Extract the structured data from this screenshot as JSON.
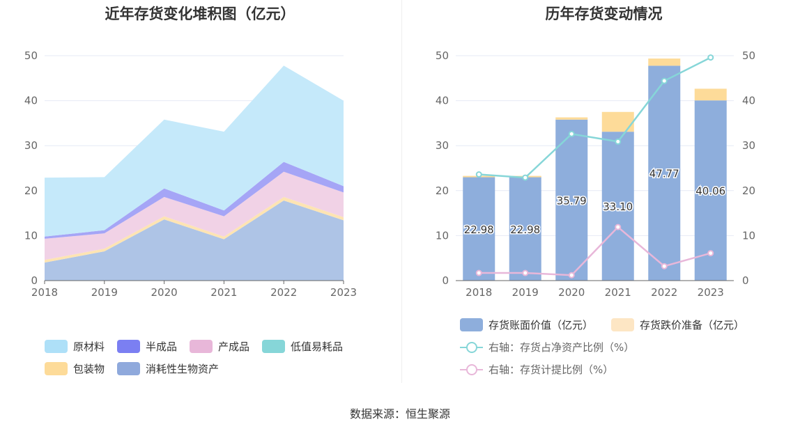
{
  "left": {
    "title": "近年存货变化堆积图（亿元）",
    "legend": [
      {
        "name": "原材料",
        "color": "#aee0f8"
      },
      {
        "name": "半成品",
        "color": "#7b7ff2"
      },
      {
        "name": "产成品",
        "color": "#e8b7d9"
      },
      {
        "name": "低值易耗品",
        "color": "#86d6d8"
      },
      {
        "name": "包装物",
        "color": "#fddb99"
      },
      {
        "name": "消耗性生物资产",
        "color": "#8fa9dc"
      }
    ]
  },
  "right": {
    "title": "历年存货变动情况",
    "legend": [
      {
        "name": "存货账面价值（亿元）",
        "color": "#8eaedc",
        "kind": "bar"
      },
      {
        "name": "存货跌价准备（亿元）",
        "color": "#fde6c4",
        "kind": "bar"
      },
      {
        "name": "右轴：存货占净资产比例（%）",
        "color": "#86d6d8",
        "kind": "line"
      },
      {
        "name": "右轴：存货计提比例（%）",
        "color": "#e8b7d9",
        "kind": "line"
      }
    ]
  },
  "source": "数据来源：恒生聚源",
  "chart_data": [
    {
      "type": "area",
      "title": "近年存货变化堆积图（亿元）",
      "x": [
        "2018",
        "2019",
        "2020",
        "2021",
        "2022",
        "2023"
      ],
      "ylim": [
        0,
        50
      ],
      "yticks": [
        0,
        10,
        20,
        30,
        40,
        50
      ],
      "stacked": true,
      "series": [
        {
          "name": "消耗性生物资产",
          "color": "#aec4e6",
          "values": [
            4.0,
            6.5,
            13.6,
            9.2,
            17.8,
            13.4
          ]
        },
        {
          "name": "包装物",
          "color": "#fde4b3",
          "values": [
            0.6,
            0.6,
            0.7,
            0.6,
            0.8,
            0.7
          ]
        },
        {
          "name": "低值易耗品",
          "color": "#86d6d8",
          "values": [
            0.0,
            0.0,
            0.0,
            0.0,
            0.0,
            0.0
          ]
        },
        {
          "name": "产成品",
          "color": "#f1d2e6",
          "values": [
            4.7,
            3.4,
            4.3,
            4.5,
            5.6,
            5.5
          ]
        },
        {
          "name": "半成品",
          "color": "#a5a5f6",
          "values": [
            0.5,
            0.7,
            1.9,
            1.3,
            2.2,
            1.4
          ]
        },
        {
          "name": "原材料",
          "color": "#c5e9fa",
          "values": [
            13.1,
            11.8,
            15.3,
            17.5,
            21.4,
            19.0
          ]
        }
      ],
      "grid": true,
      "legend_position": "bottom"
    },
    {
      "type": "bar",
      "title": "历年存货变动情况",
      "categories": [
        "2018",
        "2019",
        "2020",
        "2021",
        "2022",
        "2023"
      ],
      "ylim": [
        0,
        50
      ],
      "yticks": [
        0,
        10,
        20,
        30,
        40,
        50
      ],
      "y2lim": [
        0,
        50
      ],
      "stacked": true,
      "series": [
        {
          "name": "存货账面价值（亿元）",
          "color": "#8eaedc",
          "values": [
            22.98,
            22.98,
            35.79,
            33.1,
            47.77,
            40.06
          ],
          "labels": [
            "22.98",
            "22.98",
            "35.79",
            "33.10",
            "47.77",
            "40.06"
          ]
        },
        {
          "name": "存货跌价准备（亿元）",
          "color": "#fddb99",
          "values": [
            0.3,
            0.3,
            0.5,
            4.4,
            1.6,
            2.6
          ]
        },
        {
          "name": "右轴：存货占净资产比例（%）",
          "type": "line",
          "axis": "right",
          "color": "#86d6d8",
          "values": [
            23.6,
            22.9,
            32.6,
            30.9,
            44.4,
            49.6
          ]
        },
        {
          "name": "右轴：存货计提比例（%）",
          "type": "line",
          "axis": "right",
          "color": "#e8b7d9",
          "values": [
            1.7,
            1.7,
            1.2,
            11.9,
            3.2,
            6.1
          ]
        }
      ],
      "grid": true,
      "legend_position": "bottom"
    }
  ]
}
